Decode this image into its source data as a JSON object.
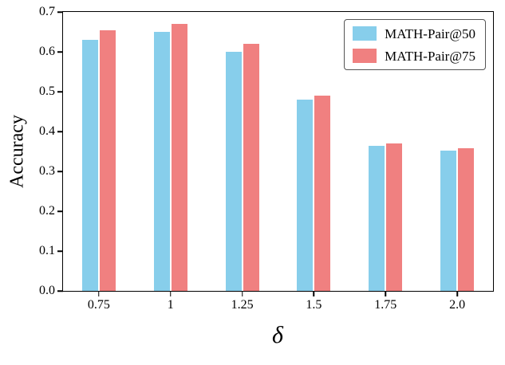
{
  "chart_data": {
    "type": "bar",
    "title": "",
    "xlabel": "δ",
    "ylabel": "Accuracy",
    "ylim": [
      0,
      0.7
    ],
    "grid": false,
    "legend_position": "upper right",
    "ytick_labels": [
      "0.0",
      "0.1",
      "0.2",
      "0.3",
      "0.4",
      "0.5",
      "0.6",
      "0.7"
    ],
    "categories": [
      "0.75",
      "1",
      "1.25",
      "1.5",
      "1.75",
      "2.0"
    ],
    "series": [
      {
        "name": "MATH-Pair@50",
        "color": "#87CEEB",
        "values": [
          0.63,
          0.65,
          0.6,
          0.48,
          0.365,
          0.352
        ]
      },
      {
        "name": "MATH-Pair@75",
        "color": "#F08080",
        "values": [
          0.655,
          0.67,
          0.62,
          0.49,
          0.37,
          0.358
        ]
      }
    ]
  }
}
